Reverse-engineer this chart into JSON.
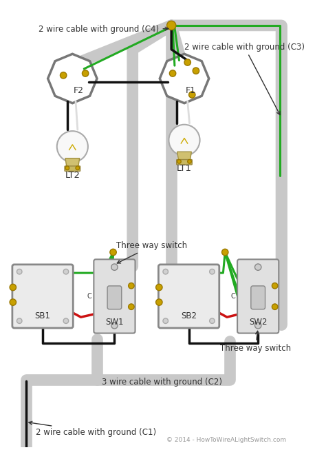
{
  "bg_color": "#ffffff",
  "sheath_color": "#c8c8c8",
  "black": "#111111",
  "green": "#22aa22",
  "red": "#cc1111",
  "white_wire": "#dddddd",
  "gold": "#c8a000",
  "gold_dark": "#9a7800",
  "box_fill": "#e8e8e8",
  "box_edge": "#888888",
  "switch_fill": "#d8d8d8",
  "bulb_fill": "#f5f5f5",
  "text_color": "#333333",
  "copyright_color": "#999999",
  "label_C1": "2 wire cable with ground (C1)",
  "label_C2": "3 wire cable with ground (C2)",
  "label_C3": "2 wire cable with ground (C3)",
  "label_C4": "2 wire cable with ground (C4)",
  "label_LT1": "LT1",
  "label_LT2": "LT2",
  "label_F1": "F1",
  "label_F2": "F2",
  "label_SB1": "SB1",
  "label_SB2": "SB2",
  "label_SW1": "SW1",
  "label_SW2": "SW2",
  "label_tws": "Three way switch",
  "copyright": "© 2014 - HowToWireALightSwitch.com",
  "figsize": [
    4.74,
    6.69
  ],
  "dpi": 100
}
